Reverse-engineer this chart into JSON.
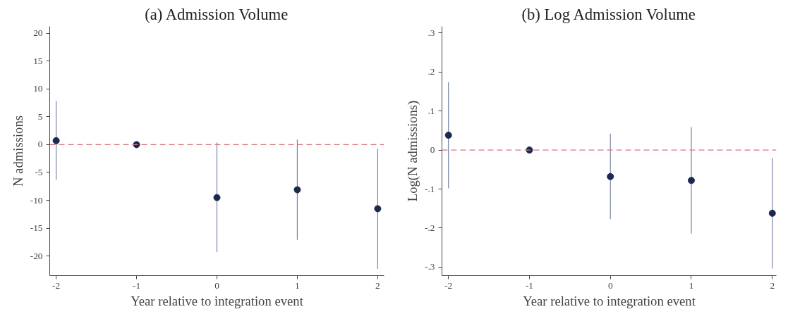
{
  "chart_data": [
    {
      "type": "scatter",
      "title": "(a) Admission Volume",
      "xlabel": "Year relative to integration event",
      "ylabel": "N admissions",
      "x": [
        -2,
        -1,
        0,
        1,
        2
      ],
      "series": [
        {
          "color": "#1a2a4f",
          "values": [
            0.7,
            0,
            -9.5,
            -8.1,
            -11.5
          ],
          "errors": [
            [
              -6.3,
              7.8
            ],
            null,
            [
              -19.3,
              0.4
            ],
            [
              -17.1,
              0.9
            ],
            [
              -22.3,
              -0.7
            ]
          ]
        }
      ],
      "xlim": [
        -2.08,
        2.08
      ],
      "ylim": [
        -23.5,
        21.2
      ],
      "xticks": [
        -2,
        -1,
        0,
        1,
        2
      ],
      "yticks": [
        -20,
        -15,
        -10,
        -5,
        0,
        5,
        10,
        15,
        20
      ],
      "ref_lines": [
        {
          "axis": "y",
          "value": 0,
          "color": "#d9737f",
          "line_style": "dashed"
        }
      ],
      "marker": "circle",
      "grid": false
    },
    {
      "type": "scatter",
      "title": "(b) Log Admission Volume",
      "xlabel": "Year relative to integration event",
      "ylabel": "Log(N admissions)",
      "x": [
        -2,
        -1,
        0,
        1,
        2
      ],
      "series": [
        {
          "color": "#1a2a4f",
          "values": [
            0.038,
            0,
            -0.068,
            -0.078,
            -0.162
          ],
          "errors": [
            [
              -0.098,
              0.174
            ],
            null,
            [
              -0.177,
              0.042
            ],
            [
              -0.214,
              0.059
            ],
            [
              -0.304,
              -0.02
            ]
          ]
        }
      ],
      "xlim": [
        -2.08,
        2.05
      ],
      "ylim": [
        -0.322,
        0.317
      ],
      "xticks": [
        -2,
        -1,
        0,
        1,
        2
      ],
      "yticks": [
        {
          "value": -0.3,
          "label": "-.3"
        },
        {
          "value": -0.2,
          "label": "-.2"
        },
        {
          "value": -0.1,
          "label": "-.1"
        },
        0,
        {
          "value": 0.1,
          "label": ".1"
        },
        {
          "value": 0.2,
          "label": ".2"
        },
        {
          "value": 0.3,
          "label": ".3"
        }
      ],
      "ref_lines": [
        {
          "axis": "y",
          "value": 0,
          "color": "#d9737f",
          "line_style": "dashed"
        }
      ],
      "marker": "circle",
      "grid": false
    }
  ]
}
